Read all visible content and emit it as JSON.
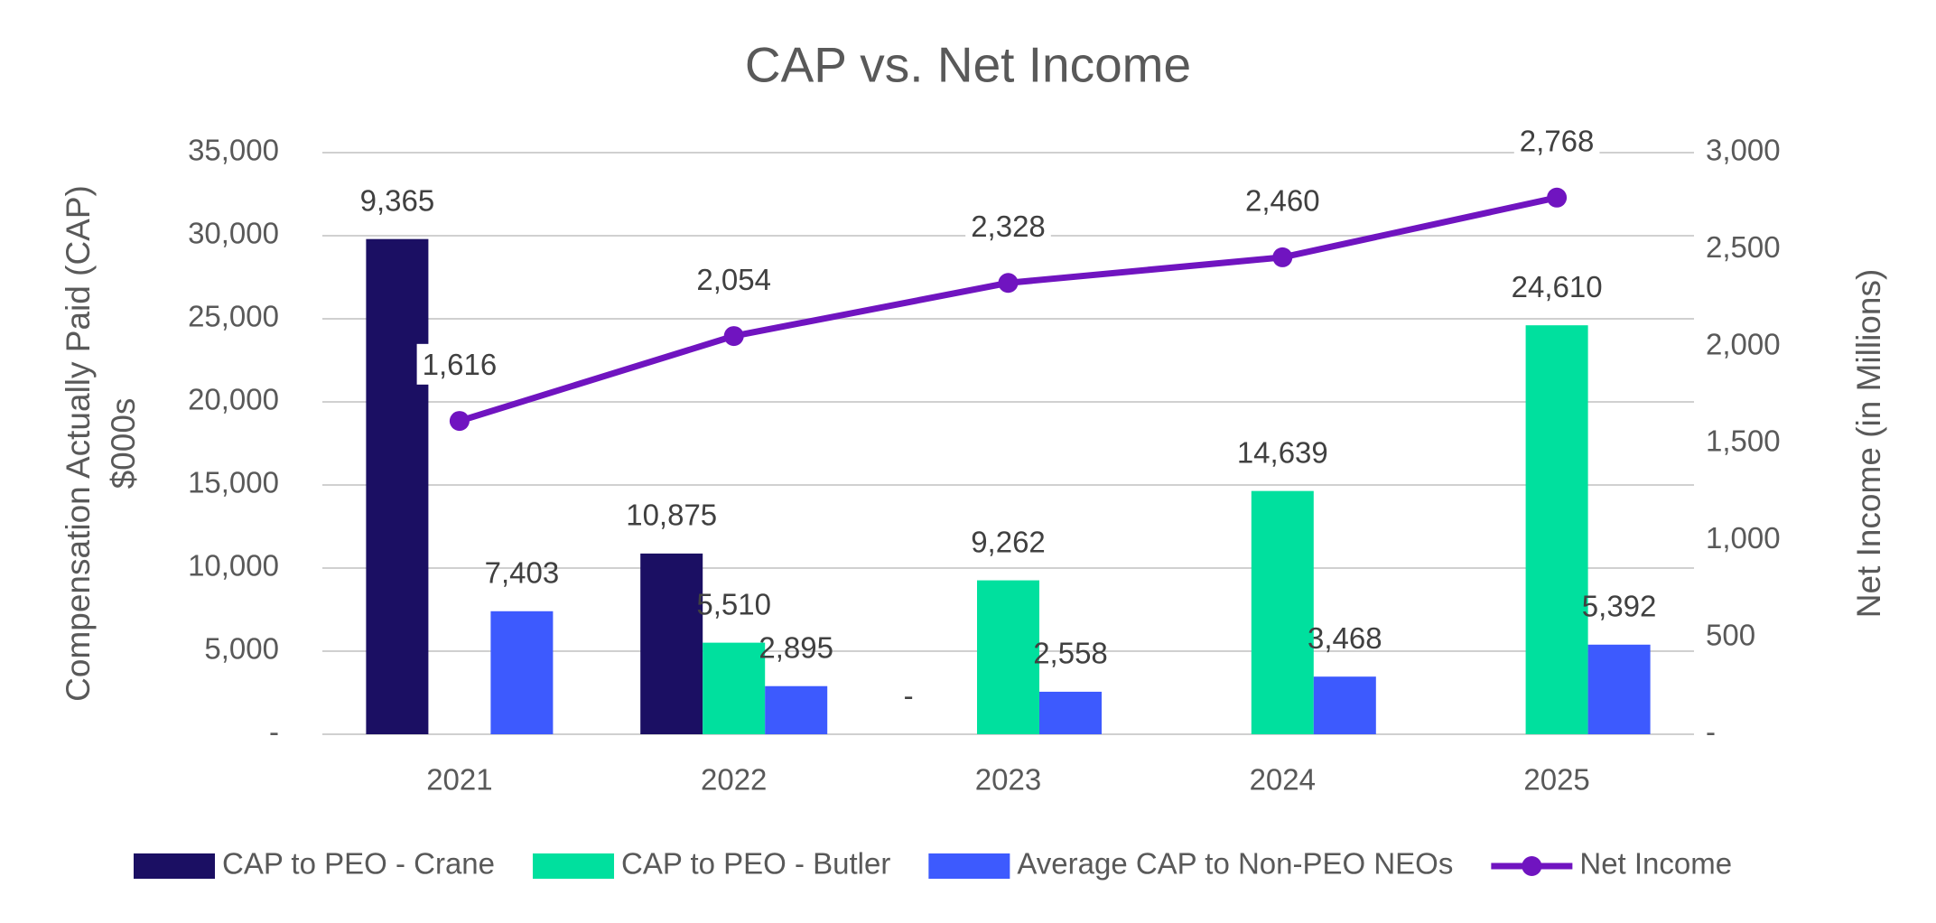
{
  "chart_data": {
    "type": "bar-line",
    "title": "CAP vs. Net Income",
    "ylabel": [
      "Compensation Actually Paid (CAP)",
      "$000s"
    ],
    "y2label": "Net Income (in Millions)",
    "categories": [
      "2021",
      "2022",
      "2023",
      "2024",
      "2025"
    ],
    "ylim": [
      0,
      35000
    ],
    "yticks": [
      {
        "value": 0,
        "label": "-"
      },
      {
        "value": 5000,
        "label": "5,000"
      },
      {
        "value": 10000,
        "label": "10,000"
      },
      {
        "value": 15000,
        "label": "15,000"
      },
      {
        "value": 20000,
        "label": "20,000"
      },
      {
        "value": 25000,
        "label": "25,000"
      },
      {
        "value": 30000,
        "label": "30,000"
      },
      {
        "value": 35000,
        "label": "35,000"
      }
    ],
    "y2lim": [
      0,
      3000
    ],
    "y2ticks": [
      {
        "value": 0,
        "label": "-"
      },
      500,
      {
        "value": 1000,
        "label": "1,000"
      },
      {
        "value": 1500,
        "label": "1,500"
      },
      {
        "value": 2000,
        "label": "2,000"
      },
      {
        "value": 2500,
        "label": "2,500"
      },
      {
        "value": 3000,
        "label": "3,000"
      }
    ],
    "grid": true,
    "annotations": [
      "9,365"
    ],
    "series": [
      {
        "name": "CAP to PEO - Crane",
        "type": "bar",
        "color": "#1b0f63",
        "values": [
          29800,
          10875,
          0,
          null,
          null
        ],
        "value_labels": [
          null,
          "10,875",
          "-",
          null,
          null
        ]
      },
      {
        "name": "CAP to PEO - Butler",
        "type": "bar",
        "color": "#00e09e",
        "values": [
          null,
          5510,
          9262,
          14639,
          24610
        ],
        "value_labels": [
          null,
          "5,510",
          "9,262",
          "14,639",
          "24,610"
        ]
      },
      {
        "name": "Average CAP to Non-PEO NEOs",
        "type": "bar",
        "color": "#3d5afe",
        "values": [
          7403,
          2895,
          2558,
          3468,
          5392
        ],
        "value_labels": [
          "7,403",
          "2,895",
          "2,558",
          "3,468",
          "5,392"
        ]
      },
      {
        "name": "Net Income",
        "type": "line",
        "axis": "y2",
        "color": "#7014c0",
        "values": [
          1616,
          2054,
          2328,
          2460,
          2768
        ],
        "value_labels": [
          "1,616",
          "2,054",
          "2,328",
          "2,460",
          "2,768"
        ]
      }
    ]
  }
}
